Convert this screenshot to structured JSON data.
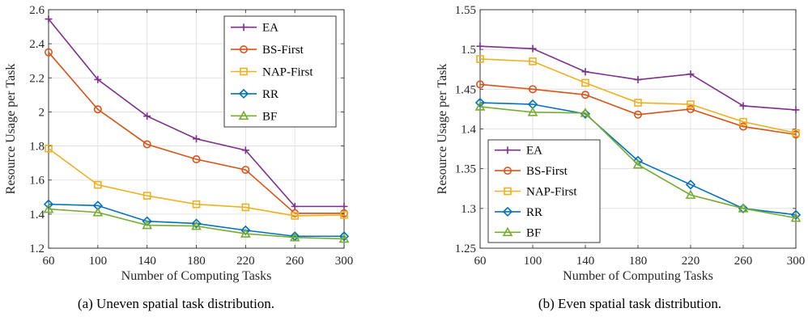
{
  "chart_data": [
    {
      "type": "line",
      "caption": "(a) Uneven spatial task distribution.",
      "xlabel": "Number of Computing Tasks",
      "ylabel": "Resource Usage per Task",
      "x": [
        60,
        100,
        140,
        180,
        220,
        260,
        300
      ],
      "xlim": [
        60,
        300
      ],
      "ylim": [
        1.2,
        2.6
      ],
      "xticks": [
        "60",
        "100",
        "140",
        "180",
        "220",
        "260",
        "300"
      ],
      "yticks": [
        "1.2",
        "1.4",
        "1.6",
        "1.8",
        "2",
        "2.2",
        "2.4",
        "2.6"
      ],
      "grid": true,
      "legend_position": "top-right",
      "series": [
        {
          "name": "EA",
          "color": "#7E2F8E",
          "marker": "plus",
          "values": [
            2.545,
            2.19,
            1.975,
            1.842,
            1.775,
            1.445,
            1.445
          ]
        },
        {
          "name": "BS-First",
          "color": "#D95319",
          "marker": "circle",
          "values": [
            2.35,
            2.015,
            1.81,
            1.722,
            1.66,
            1.405,
            1.405
          ]
        },
        {
          "name": "NAP-First",
          "color": "#EDB120",
          "marker": "square",
          "values": [
            1.785,
            1.572,
            1.508,
            1.458,
            1.44,
            1.39,
            1.395
          ]
        },
        {
          "name": "RR",
          "color": "#0072BD",
          "marker": "diamond",
          "values": [
            1.458,
            1.45,
            1.358,
            1.345,
            1.305,
            1.27,
            1.27
          ]
        },
        {
          "name": "BF",
          "color": "#77AC30",
          "marker": "triangle",
          "values": [
            1.43,
            1.41,
            1.335,
            1.33,
            1.285,
            1.263,
            1.255
          ]
        }
      ]
    },
    {
      "type": "line",
      "caption": "(b) Even spatial task distribution.",
      "xlabel": "Number of Computing Tasks",
      "ylabel": "Resource Usage per Task",
      "x": [
        60,
        100,
        140,
        180,
        220,
        260,
        300
      ],
      "xlim": [
        60,
        300
      ],
      "ylim": [
        1.25,
        1.55
      ],
      "xticks": [
        "60",
        "100",
        "140",
        "180",
        "220",
        "260",
        "300"
      ],
      "yticks": [
        "1.25",
        "1.3",
        "1.35",
        "1.4",
        "1.45",
        "1.5",
        "1.55"
      ],
      "grid": true,
      "legend_position": "bottom-left",
      "series": [
        {
          "name": "EA",
          "color": "#7E2F8E",
          "marker": "plus",
          "values": [
            1.504,
            1.501,
            1.472,
            1.462,
            1.469,
            1.429,
            1.424
          ]
        },
        {
          "name": "BS-First",
          "color": "#D95319",
          "marker": "circle",
          "values": [
            1.456,
            1.45,
            1.443,
            1.418,
            1.425,
            1.403,
            1.393
          ]
        },
        {
          "name": "NAP-First",
          "color": "#EDB120",
          "marker": "square",
          "values": [
            1.488,
            1.485,
            1.458,
            1.433,
            1.431,
            1.409,
            1.395
          ]
        },
        {
          "name": "RR",
          "color": "#0072BD",
          "marker": "diamond",
          "values": [
            1.433,
            1.431,
            1.419,
            1.36,
            1.33,
            1.3,
            1.292
          ]
        },
        {
          "name": "BF",
          "color": "#77AC30",
          "marker": "triangle",
          "values": [
            1.428,
            1.421,
            1.42,
            1.355,
            1.317,
            1.3,
            1.288
          ]
        }
      ]
    }
  ]
}
